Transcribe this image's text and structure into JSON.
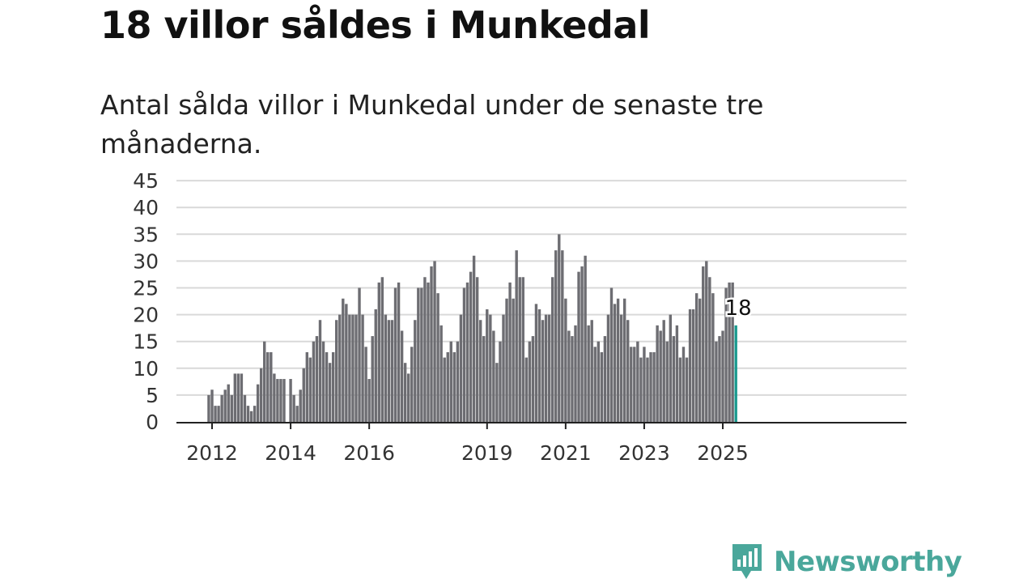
{
  "title": "18 villor såldes i Munkedal",
  "subtitle": "Antal sålda villor i Munkedal under de senaste tre månaderna.",
  "brand": {
    "name": "Newsworthy",
    "icon": "newsworthy-logo-icon",
    "color": "#4aa79b"
  },
  "colors": {
    "bar": "#6d6d72",
    "highlight": "#1a9a8f",
    "grid": "#d9d9d9",
    "axis": "#222222"
  },
  "chart_data": {
    "type": "bar",
    "title": "Antal sålda villor i Munkedal under de senaste tre månaderna.",
    "xlabel": "",
    "ylabel": "",
    "ylim": [
      0,
      45
    ],
    "yticks": [
      0,
      5,
      10,
      15,
      20,
      25,
      30,
      35,
      40,
      45
    ],
    "grid": true,
    "x_start": "2011-12",
    "x_ticks": [
      "2012",
      "2014",
      "2016",
      "2019",
      "2021",
      "2023",
      "2025"
    ],
    "x_tick_months": [
      "2012-01",
      "2014-01",
      "2016-01",
      "2019-01",
      "2021-01",
      "2023-01",
      "2025-01"
    ],
    "values": [
      5,
      6,
      3,
      3,
      5,
      6,
      7,
      5,
      9,
      9,
      9,
      5,
      3,
      2,
      3,
      7,
      10,
      15,
      13,
      13,
      9,
      8,
      8,
      8,
      0,
      8,
      5,
      3,
      6,
      10,
      13,
      12,
      15,
      16,
      19,
      15,
      13,
      11,
      13,
      19,
      20,
      23,
      22,
      20,
      20,
      20,
      25,
      20,
      14,
      8,
      16,
      21,
      26,
      27,
      20,
      19,
      19,
      25,
      26,
      17,
      11,
      9,
      14,
      19,
      25,
      25,
      27,
      26,
      29,
      30,
      24,
      18,
      12,
      13,
      15,
      13,
      15,
      20,
      25,
      26,
      28,
      31,
      27,
      19,
      16,
      21,
      20,
      17,
      11,
      15,
      20,
      23,
      26,
      23,
      32,
      27,
      27,
      12,
      15,
      16,
      22,
      21,
      19,
      20,
      20,
      27,
      32,
      35,
      32,
      23,
      17,
      16,
      18,
      28,
      29,
      31,
      18,
      19,
      14,
      15,
      13,
      16,
      20,
      25,
      22,
      23,
      20,
      23,
      19,
      14,
      14,
      15,
      12,
      14,
      12,
      13,
      13,
      18,
      17,
      19,
      15,
      20,
      16,
      18,
      12,
      14,
      12,
      21,
      21,
      24,
      23,
      29,
      30,
      27,
      24,
      15,
      16,
      17,
      25,
      26,
      26,
      18
    ],
    "highlight_last": true,
    "annotation": {
      "text": "18"
    }
  }
}
